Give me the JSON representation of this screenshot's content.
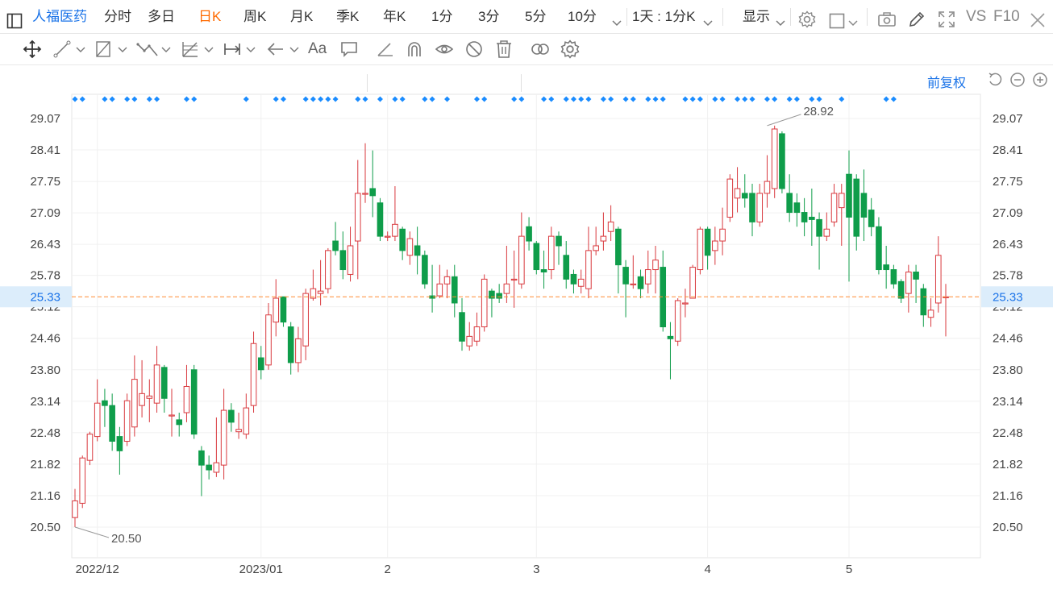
{
  "stock_name": "人福医药",
  "periods": [
    "分时",
    "多日",
    "日K",
    "周K",
    "月K",
    "季K",
    "年K",
    "1分",
    "3分",
    "5分",
    "10分"
  ],
  "active_period": "日K",
  "interval_select": "1天 : 1分K",
  "display_label": "显示",
  "vs_label": "VS",
  "f10_label": "F10",
  "fuquan_label": "前复权",
  "icons": {
    "topbar": [
      "sidebar-toggle-icon",
      "chevron-down-icon",
      "gear-icon",
      "square-icon",
      "chevron-down-icon",
      "camera-icon",
      "pencil-icon",
      "fullscreen-icon"
    ],
    "drawing_tools": [
      "move-cross-icon",
      "line-segment-icon",
      "channel-icon",
      "wave-line-icon",
      "fibonacci-icon",
      "horizontal-range-icon",
      "arrow-left-icon",
      "text-aa-icon",
      "comment-icon",
      "angle-icon",
      "magnet-icon",
      "eye-cycle-icon",
      "visibility-off-icon",
      "trash-icon",
      "link-icon",
      "settings-gear-icon"
    ],
    "chart_controls": [
      "undo-icon",
      "zoom-out-icon",
      "zoom-in-icon"
    ]
  },
  "colors": {
    "up": "#d9393e",
    "down": "#0f9d4a",
    "accent": "#1a73e8",
    "active": "#ff6a00",
    "marker": "#1a8cff",
    "price_line": "#ff8c33",
    "price_tag_bg": "#dcedfb"
  },
  "chart_data": {
    "type": "candlestick",
    "title": "",
    "y_ticks": [
      29.07,
      28.41,
      27.75,
      27.09,
      26.43,
      25.78,
      25.12,
      24.46,
      23.8,
      23.14,
      22.48,
      21.82,
      21.16,
      20.5
    ],
    "ylim": [
      20.1,
      29.55
    ],
    "x_labels": [
      {
        "label": "2022/12",
        "index": 3
      },
      {
        "label": "2023/01",
        "index": 25
      },
      {
        "label": "2",
        "index": 42
      },
      {
        "label": "3",
        "index": 62
      },
      {
        "label": "4",
        "index": 85
      },
      {
        "label": "5",
        "index": 104
      }
    ],
    "current_price": "25.33",
    "annotations": [
      {
        "label": "20.50",
        "index": 0,
        "value": 20.5
      },
      {
        "label": "28.92",
        "index": 93,
        "value": 28.92
      }
    ],
    "candles": [
      [
        20.7,
        21.05,
        21.3,
        20.5
      ],
      [
        21.0,
        21.95,
        22.0,
        20.9
      ],
      [
        21.9,
        22.45,
        22.5,
        21.8
      ],
      [
        22.4,
        23.1,
        23.6,
        22.3
      ],
      [
        23.15,
        23.05,
        23.4,
        22.6
      ],
      [
        23.05,
        22.3,
        23.3,
        22.1
      ],
      [
        22.4,
        22.1,
        22.6,
        21.6
      ],
      [
        22.3,
        23.15,
        23.3,
        22.2
      ],
      [
        22.6,
        23.6,
        24.1,
        22.4
      ],
      [
        23.05,
        23.3,
        24.0,
        22.8
      ],
      [
        23.2,
        23.25,
        23.6,
        22.7
      ],
      [
        23.1,
        23.9,
        24.3,
        22.9
      ],
      [
        23.85,
        23.2,
        23.9,
        22.9
      ],
      [
        22.85,
        22.85,
        23.4,
        22.4
      ],
      [
        22.75,
        22.65,
        22.9,
        22.4
      ],
      [
        22.9,
        23.45,
        23.9,
        22.7
      ],
      [
        23.8,
        22.45,
        23.9,
        22.35
      ],
      [
        22.1,
        21.8,
        22.2,
        21.15
      ],
      [
        21.8,
        21.7,
        22.0,
        21.5
      ],
      [
        21.65,
        21.85,
        22.8,
        21.55
      ],
      [
        21.8,
        22.95,
        23.4,
        21.5
      ],
      [
        22.95,
        22.7,
        23.1,
        22.5
      ],
      [
        22.5,
        22.55,
        22.9,
        22.35
      ],
      [
        22.45,
        23.0,
        23.3,
        22.35
      ],
      [
        23.05,
        24.35,
        24.6,
        22.9
      ],
      [
        24.05,
        23.8,
        24.3,
        23.6
      ],
      [
        23.9,
        24.95,
        25.2,
        23.8
      ],
      [
        24.8,
        25.3,
        25.7,
        24.5
      ],
      [
        25.33,
        24.8,
        25.33,
        24.7
      ],
      [
        24.7,
        23.95,
        24.8,
        23.7
      ],
      [
        23.95,
        24.45,
        24.7,
        23.75
      ],
      [
        24.3,
        25.4,
        25.5,
        24.0
      ],
      [
        25.3,
        25.5,
        25.9,
        25.25
      ],
      [
        25.4,
        25.45,
        26.1,
        25.15
      ],
      [
        25.5,
        26.3,
        26.35,
        25.4
      ],
      [
        26.5,
        26.3,
        26.9,
        26.2
      ],
      [
        26.3,
        25.9,
        26.7,
        25.7
      ],
      [
        25.8,
        26.4,
        26.8,
        25.65
      ],
      [
        26.5,
        27.5,
        28.2,
        25.7
      ],
      [
        27.5,
        27.5,
        28.55,
        27.3
      ],
      [
        27.6,
        27.45,
        28.4,
        27.0
      ],
      [
        27.3,
        26.6,
        27.4,
        26.5
      ],
      [
        26.6,
        26.6,
        26.7,
        26.5
      ],
      [
        26.6,
        26.85,
        27.65,
        26.5
      ],
      [
        26.75,
        26.3,
        26.8,
        26.1
      ],
      [
        26.2,
        26.55,
        26.7,
        26.0
      ],
      [
        26.4,
        26.2,
        26.8,
        25.8
      ],
      [
        26.2,
        25.6,
        26.3,
        25.5
      ],
      [
        25.35,
        25.3,
        26.0,
        25.0
      ],
      [
        25.35,
        25.6,
        26.0,
        25.3
      ],
      [
        25.6,
        25.75,
        25.9,
        25.3
      ],
      [
        25.75,
        25.2,
        26.0,
        24.9
      ],
      [
        25.0,
        24.4,
        25.3,
        24.2
      ],
      [
        24.3,
        24.5,
        24.8,
        24.2
      ],
      [
        24.4,
        24.7,
        25.0,
        24.3
      ],
      [
        24.7,
        25.7,
        25.8,
        24.6
      ],
      [
        25.45,
        25.3,
        25.5,
        24.9
      ],
      [
        25.4,
        25.3,
        25.6,
        25.2
      ],
      [
        25.4,
        25.6,
        26.4,
        25.2
      ],
      [
        25.7,
        25.7,
        26.3,
        25.1
      ],
      [
        25.6,
        26.6,
        27.1,
        25.5
      ],
      [
        26.8,
        26.5,
        27.0,
        26.3
      ],
      [
        26.45,
        25.9,
        26.5,
        25.8
      ],
      [
        25.9,
        25.85,
        26.3,
        25.5
      ],
      [
        25.9,
        26.6,
        26.8,
        25.7
      ],
      [
        26.6,
        26.4,
        26.7,
        26.0
      ],
      [
        26.2,
        25.7,
        26.5,
        25.5
      ],
      [
        25.8,
        25.6,
        25.9,
        25.4
      ],
      [
        25.55,
        25.7,
        25.9,
        25.4
      ],
      [
        25.5,
        26.3,
        26.8,
        25.3
      ],
      [
        26.3,
        26.4,
        26.8,
        26.2
      ],
      [
        26.5,
        26.6,
        27.1,
        26.3
      ],
      [
        26.7,
        26.9,
        27.25,
        26.5
      ],
      [
        26.75,
        26.0,
        26.8,
        25.4
      ],
      [
        25.95,
        25.6,
        26.1,
        24.9
      ],
      [
        25.6,
        25.6,
        26.2,
        25.5
      ],
      [
        25.75,
        25.5,
        25.9,
        25.3
      ],
      [
        25.6,
        25.9,
        26.3,
        25.4
      ],
      [
        25.9,
        26.1,
        26.4,
        25.4
      ],
      [
        25.95,
        24.7,
        26.3,
        24.6
      ],
      [
        24.5,
        24.45,
        24.8,
        23.6
      ],
      [
        24.4,
        25.25,
        25.3,
        24.3
      ],
      [
        25.2,
        25.2,
        25.5,
        24.9
      ],
      [
        25.3,
        25.95,
        26.0,
        25.3
      ],
      [
        25.9,
        26.75,
        26.8,
        25.8
      ],
      [
        26.75,
        26.2,
        26.8,
        25.9
      ],
      [
        26.3,
        26.5,
        26.8,
        26.0
      ],
      [
        26.5,
        26.75,
        27.2,
        26.2
      ],
      [
        27.0,
        27.8,
        27.9,
        26.9
      ],
      [
        27.4,
        27.6,
        28.05,
        27.1
      ],
      [
        27.5,
        27.4,
        27.9,
        27.2
      ],
      [
        27.5,
        26.9,
        27.7,
        26.6
      ],
      [
        26.9,
        27.5,
        27.7,
        26.8
      ],
      [
        27.5,
        27.75,
        28.3,
        27.2
      ],
      [
        27.6,
        28.85,
        28.92,
        27.4
      ],
      [
        28.75,
        27.6,
        28.8,
        27.5
      ],
      [
        27.5,
        27.1,
        27.9,
        26.9
      ],
      [
        27.3,
        27.1,
        27.5,
        26.8
      ],
      [
        27.1,
        26.9,
        27.4,
        26.6
      ],
      [
        27.0,
        26.95,
        27.6,
        26.4
      ],
      [
        26.95,
        26.6,
        27.1,
        25.9
      ],
      [
        26.6,
        26.75,
        27.1,
        26.5
      ],
      [
        26.9,
        27.5,
        27.7,
        26.8
      ],
      [
        27.2,
        27.5,
        27.7,
        26.4
      ],
      [
        27.9,
        27.0,
        28.4,
        25.65
      ],
      [
        27.8,
        26.6,
        27.9,
        26.3
      ],
      [
        27.5,
        27.0,
        28.0,
        26.5
      ],
      [
        27.15,
        26.8,
        27.4,
        26.6
      ],
      [
        26.8,
        25.9,
        27.0,
        25.8
      ],
      [
        26.0,
        25.9,
        26.4,
        25.5
      ],
      [
        25.9,
        25.6,
        26.0,
        25.5
      ],
      [
        25.65,
        25.3,
        25.7,
        25.2
      ],
      [
        25.4,
        25.85,
        26.0,
        25.0
      ],
      [
        25.85,
        25.7,
        26.0,
        25.2
      ],
      [
        25.5,
        24.95,
        25.6,
        24.7
      ],
      [
        24.9,
        25.05,
        25.3,
        24.7
      ],
      [
        25.2,
        26.2,
        26.6,
        25.0
      ],
      [
        25.33,
        25.33,
        25.6,
        24.5
      ]
    ],
    "markers": [
      0,
      1,
      4,
      5,
      7,
      8,
      10,
      11,
      15,
      16,
      23,
      27,
      28,
      31,
      32,
      33,
      34,
      35,
      38,
      39,
      41,
      43,
      44,
      47,
      48,
      50,
      54,
      55,
      59,
      60,
      63,
      64,
      66,
      67,
      68,
      69,
      71,
      72,
      74,
      75,
      77,
      78,
      79,
      82,
      83,
      84,
      86,
      87,
      89,
      90,
      91,
      93,
      94,
      96,
      97,
      99,
      100,
      103,
      109,
      110
    ]
  }
}
